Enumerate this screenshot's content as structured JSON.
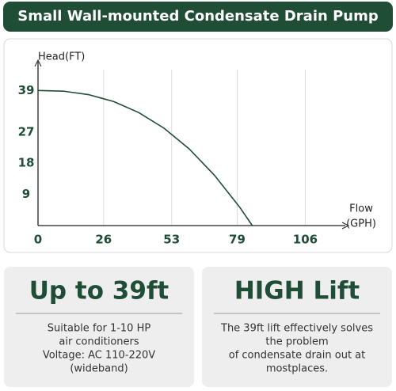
{
  "header": {
    "title": "Small Wall-mounted Condensate Drain Pump"
  },
  "chart_data": {
    "type": "line",
    "y_label": "Head(FT)",
    "x_label": [
      "Flow",
      "(GPH)"
    ],
    "x": [
      0,
      10,
      20,
      30,
      40,
      50,
      60,
      70,
      80,
      85
    ],
    "values": [
      39,
      38.8,
      37.8,
      35.8,
      32.6,
      28.1,
      22.1,
      14.5,
      5.3,
      0
    ],
    "color": "#1f4d36",
    "xlim": [
      0,
      120
    ],
    "xticks": [
      0,
      26,
      53,
      79,
      106
    ],
    "ylim": [
      0,
      45
    ],
    "yticks": [
      9,
      18,
      27,
      39
    ],
    "grid": true
  },
  "cards": [
    {
      "title": "Up to 39ft",
      "lines": [
        "Suitable for 1-10 HP",
        "air conditioners",
        "Voltage: AC 110-220V",
        "(wideband)"
      ]
    },
    {
      "title": "HIGH Lift",
      "lines": [
        "The 39ft lift effectively solves",
        "the problem",
        "of condensate drain out at",
        "mostplaces."
      ]
    }
  ]
}
